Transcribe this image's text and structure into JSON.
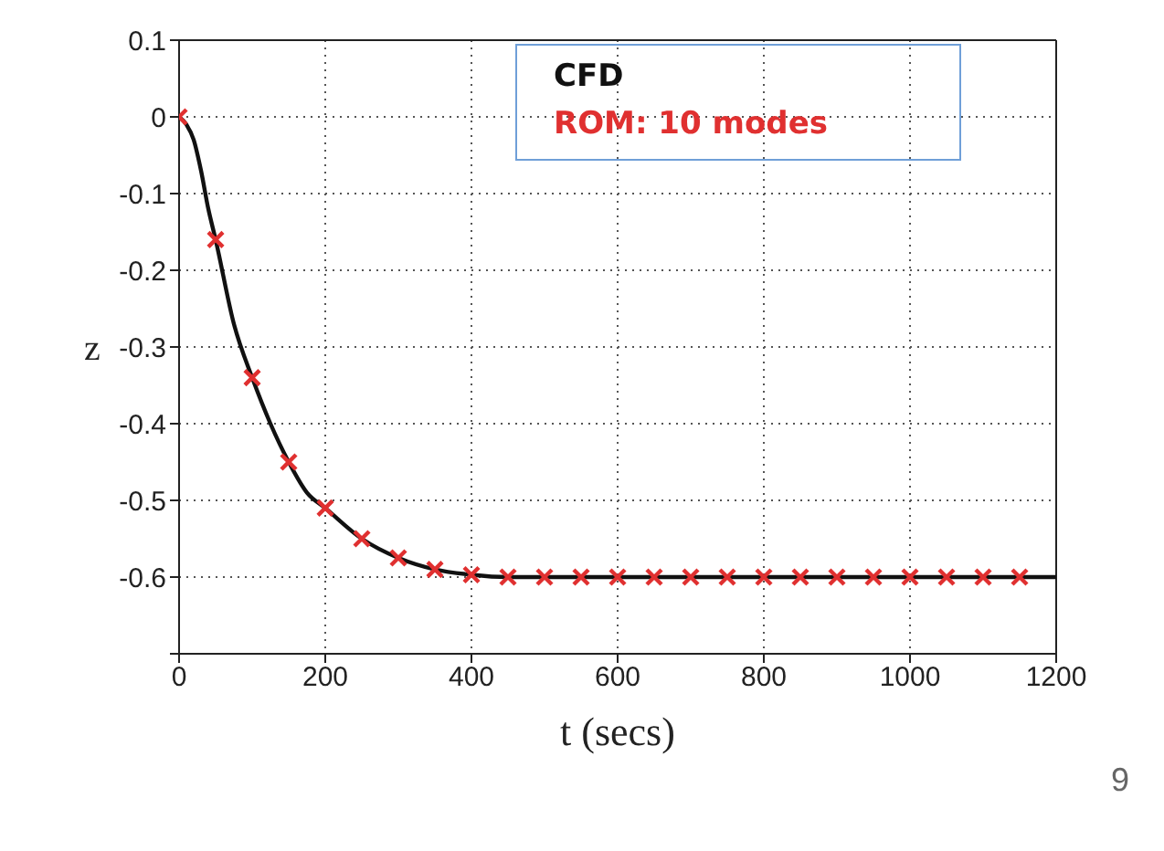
{
  "chart_data": {
    "type": "line",
    "xlabel": "t (secs)",
    "ylabel": "z",
    "annotations": [
      "9"
    ],
    "xlim": [
      0,
      1200
    ],
    "xticks": [
      0,
      200,
      400,
      600,
      800,
      1000,
      1200
    ],
    "ylim": [
      -0.7,
      0.1
    ],
    "yticks": [
      {
        "value": -0.7,
        "label": null
      },
      -0.6,
      -0.5,
      -0.4,
      -0.3,
      -0.2,
      -0.1,
      0,
      0.1
    ],
    "grid": true,
    "legend": "top right",
    "series": [
      {
        "name": "CFD",
        "color": "#111111",
        "marker": "none",
        "line_style": "solid",
        "x": [
          0,
          10,
          20,
          30,
          40,
          50,
          75,
          100,
          125,
          150,
          175,
          200,
          250,
          300,
          350,
          400,
          450,
          500,
          600,
          800,
          1000,
          1200
        ],
        "values": [
          0,
          -0.01,
          -0.03,
          -0.07,
          -0.12,
          -0.16,
          -0.27,
          -0.34,
          -0.4,
          -0.45,
          -0.49,
          -0.51,
          -0.55,
          -0.575,
          -0.59,
          -0.597,
          -0.6,
          -0.6,
          -0.6,
          -0.6,
          -0.6,
          -0.6
        ]
      },
      {
        "name": "ROM: 10 modes",
        "color": "#e03030",
        "type": "scatter",
        "marker": "cross",
        "x": [
          0,
          50,
          100,
          150,
          200,
          250,
          300,
          350,
          400,
          450,
          500,
          550,
          600,
          650,
          700,
          750,
          800,
          850,
          900,
          950,
          1000,
          1050,
          1100,
          1150
        ],
        "values": [
          0,
          -0.16,
          -0.34,
          -0.45,
          -0.51,
          -0.55,
          -0.575,
          -0.59,
          -0.597,
          -0.6,
          -0.6,
          -0.6,
          -0.6,
          -0.6,
          -0.6,
          -0.6,
          -0.6,
          -0.6,
          -0.6,
          -0.6,
          -0.6,
          -0.6,
          -0.6,
          -0.6
        ]
      }
    ]
  }
}
